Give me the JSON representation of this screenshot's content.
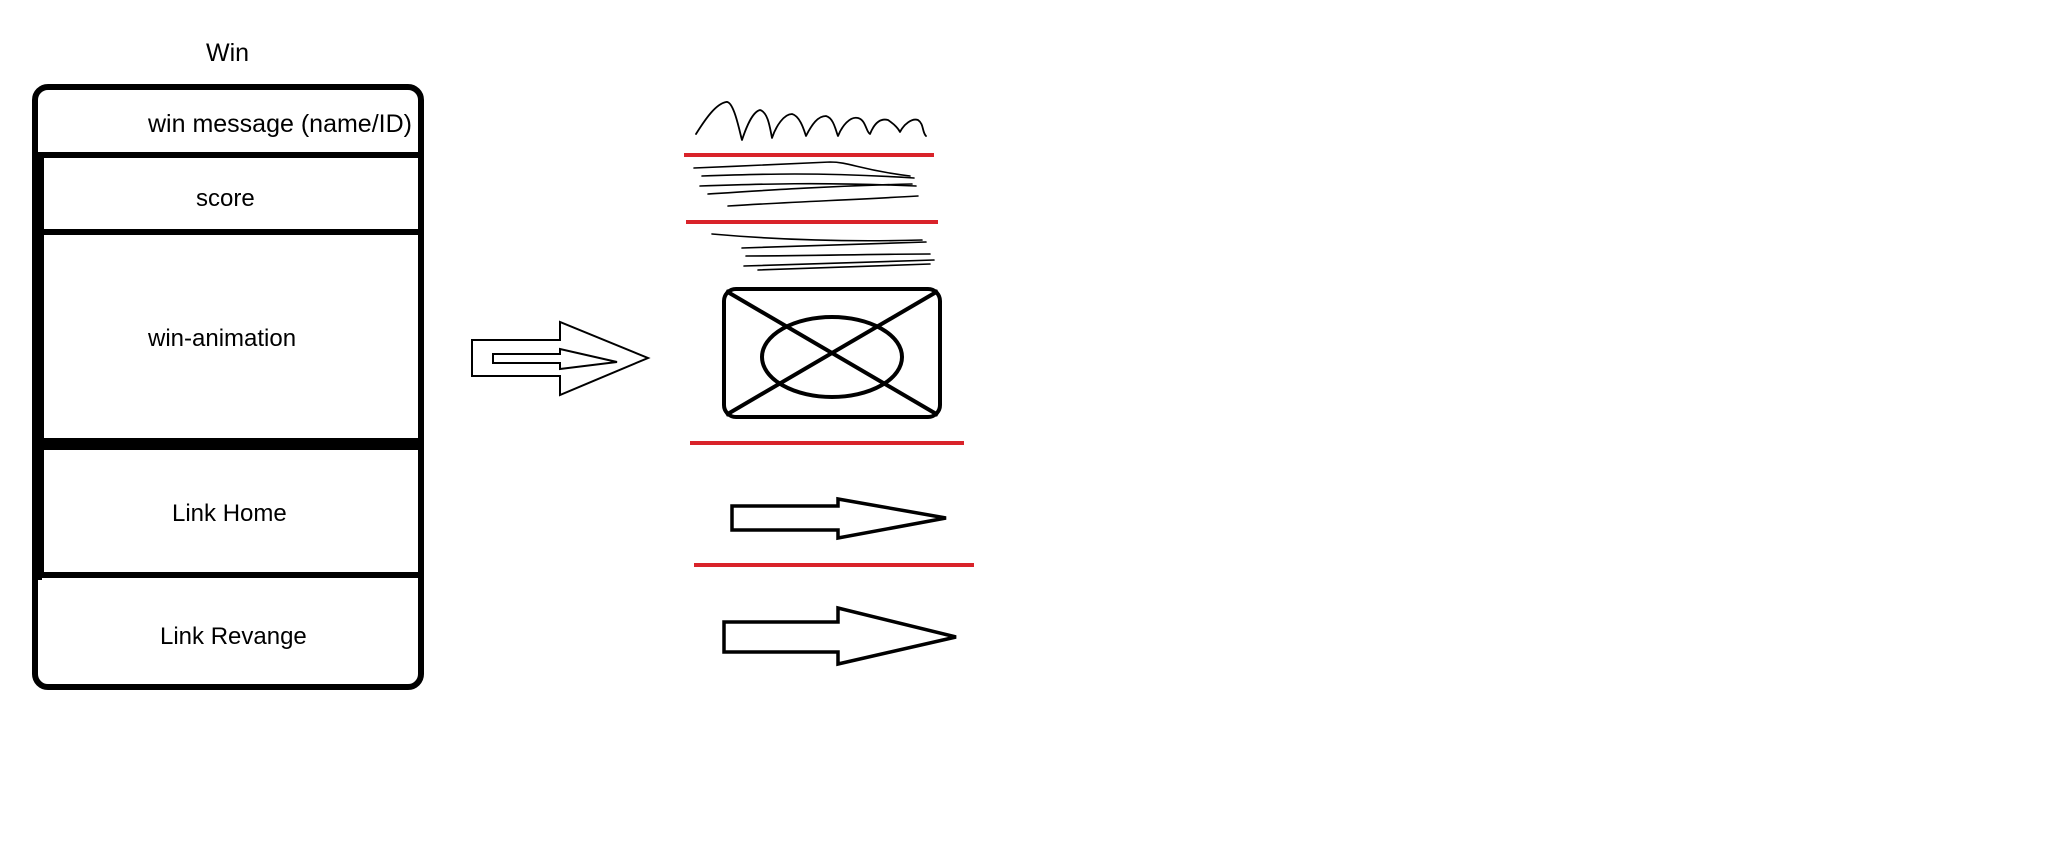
{
  "diagram": {
    "title": "Win",
    "sections": [
      {
        "id": "message",
        "label": "win message (name/ID)"
      },
      {
        "id": "score",
        "label": "score"
      },
      {
        "id": "animation",
        "label": "win-animation"
      },
      {
        "id": "home",
        "label": "Link Home"
      },
      {
        "id": "revange",
        "label": "Link Revange"
      }
    ]
  },
  "colors": {
    "stroke": "#000000",
    "divider": "#d9232a",
    "background": "#ffffff"
  }
}
